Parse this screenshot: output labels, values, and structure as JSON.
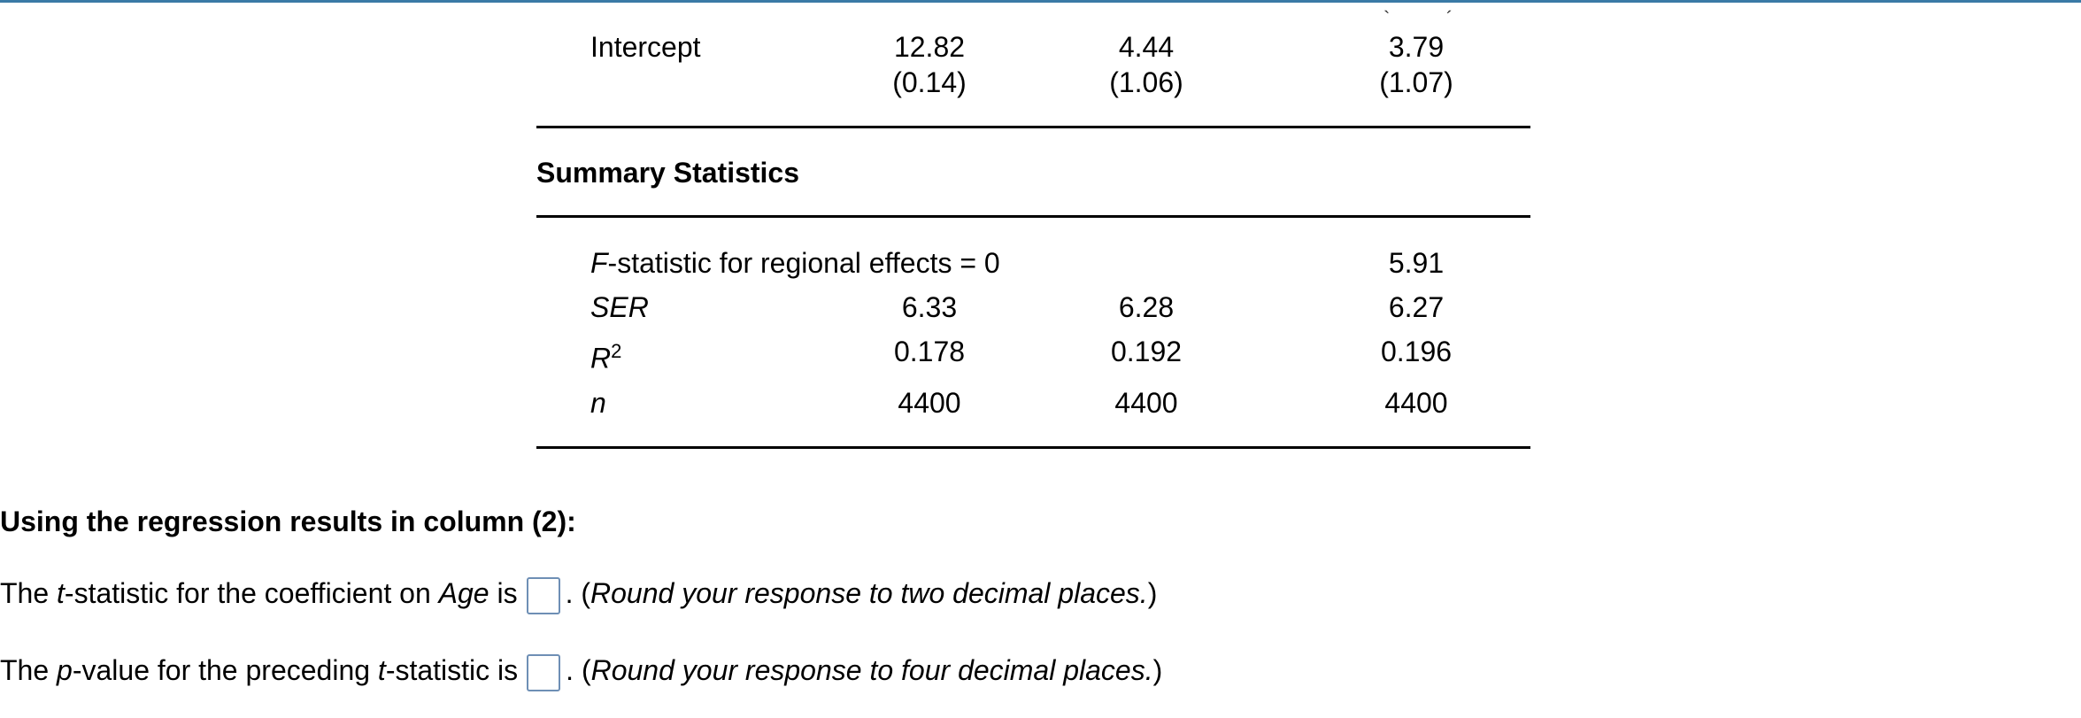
{
  "table": {
    "intercept": {
      "label": "Intercept",
      "col1_coef": "12.82",
      "col1_se": "(0.14)",
      "col2_coef": "4.44",
      "col2_se": "(1.06)",
      "col3_coef": "3.79",
      "col3_se": "(1.07)"
    },
    "summary_heading": "Summary Statistics",
    "fstat": {
      "label_italic": "F",
      "label_rest": "-statistic for regional effects = 0",
      "col3": "5.91"
    },
    "ser": {
      "label": "SER",
      "col1": "6.33",
      "col2": "6.28",
      "col3": "6.27"
    },
    "r2": {
      "label": "R",
      "sup": "2",
      "col1": "0.178",
      "col2": "0.192",
      "col3": "0.196"
    },
    "n": {
      "label": "n",
      "col1": "4400",
      "col2": "4400",
      "col3": "4400"
    }
  },
  "question": {
    "heading": "Using the regression results in column (2):",
    "q1": {
      "prefix": "The ",
      "t": "t",
      "mid": "-statistic for the coefficient on ",
      "var": "Age",
      "suffix": " is",
      "after": ". (",
      "note": "Round your response to two decimal places.",
      "close": ")"
    },
    "q2": {
      "prefix": "The ",
      "p": "p",
      "mid": "-value for the preceding ",
      "t": "t",
      "suffix": "-statistic is",
      "after": ". (",
      "note": "Round your response to four decimal places.",
      "close": ")"
    }
  },
  "colors": {
    "top_bar": "#3a7aa6",
    "input_border": "#6e8fb5"
  }
}
